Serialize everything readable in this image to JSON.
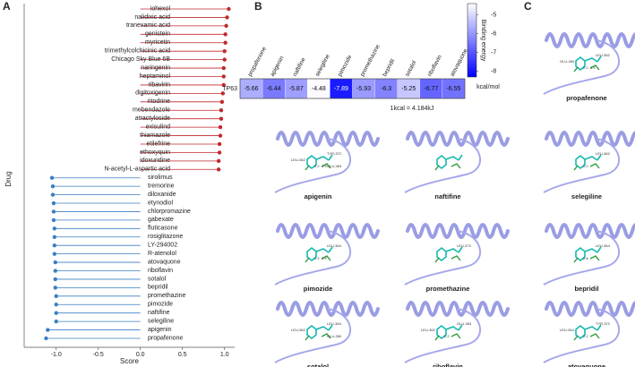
{
  "panels": [
    "A",
    "B",
    "C"
  ],
  "chart_data": [
    {
      "type": "lollipop",
      "x_label": "Score",
      "y_label": "Drug",
      "categories": [
        "iohexol",
        "nalidixic acid",
        "tranexamic acid",
        "genistein",
        "myricetin",
        "trimethylcolchicinic acid",
        "Chicago Sky Blue 6B",
        "naringenin",
        "heptaminol",
        "ribavirin",
        "digitoxigenin",
        "ritodrine",
        "mebendazole",
        "atractyloside",
        "exisulind",
        "thiamazole",
        "etilefrine",
        "ethoxyquin",
        "idoxuridine",
        "N-acetyl-L-aspartic acid",
        "sirolimus",
        "tremorine",
        "diloxanide",
        "etynodiol",
        "chlorpromazine",
        "gabexate",
        "fluticasone",
        "rosiglitazone",
        "LY-294002",
        "R-atenolol",
        "atovaquone",
        "riboflavin",
        "sotalol",
        "bepridil",
        "promethazine",
        "pimozide",
        "naftifine",
        "selegiline",
        "apigenin",
        "propafenone"
      ],
      "values": [
        1.05,
        1.03,
        1.02,
        1.01,
        1.01,
        1.0,
        1.0,
        0.99,
        0.99,
        0.99,
        0.98,
        0.97,
        0.96,
        0.96,
        0.95,
        0.95,
        0.94,
        0.94,
        0.93,
        0.93,
        -1.05,
        -1.04,
        -1.04,
        -1.03,
        -1.03,
        -1.03,
        -1.02,
        -1.02,
        -1.02,
        -1.02,
        -1.01,
        -1.01,
        -1.01,
        -1.01,
        -1.0,
        -1.0,
        -1.0,
        -1.0,
        -1.1,
        -1.12
      ],
      "positive_color": "#c0282d",
      "negative_color": "#3a7fc4",
      "xlim": [
        -1.38,
        1.12
      ],
      "xticks": [
        {
          "value": -1.0,
          "label": "-1.0"
        },
        {
          "value": -0.5,
          "label": "-0.5"
        },
        {
          "value": 0,
          "label": "0.0"
        },
        {
          "value": 0.5,
          "label": "0.5"
        },
        {
          "value": 1.0,
          "label": "1.0"
        }
      ]
    },
    {
      "type": "heatmap",
      "rows": [
        "TP63"
      ],
      "categories": [
        "propafenone",
        "apigenin",
        "naftifine",
        "selegiline",
        "pimozide",
        "promethazine",
        "bepridil",
        "sotalol",
        "riboflavin",
        "atovaquone"
      ],
      "values": [
        -5.66,
        -6.44,
        -5.87,
        -4.48,
        -7.89,
        -5.93,
        -6.3,
        -5.25,
        -6.77,
        -6.55
      ],
      "colorbar_label": "Binding energy",
      "unit": "kcal/mol",
      "note": "1kcal = 4.184kJ",
      "clim": [
        -4.4,
        -8.3
      ],
      "cticks": [
        -5,
        -6,
        -7,
        -8
      ],
      "low_color": "#ffffff",
      "high_color": "#0000ff"
    }
  ],
  "structures": [
    {
      "name": "propafenone",
      "residues": [
        "LEU-362",
        "GLU-360"
      ],
      "distances": [
        "2.2",
        "1.9"
      ]
    },
    {
      "name": "apigenin",
      "residues": [
        "TYR-372",
        "LEU-362",
        "GLU-363"
      ],
      "distances": [
        "2.2",
        "1.9"
      ]
    },
    {
      "name": "naftifine",
      "residues": [],
      "distances": []
    },
    {
      "name": "selegiline",
      "residues": [
        "LEU-362"
      ],
      "distances": [
        "2.2"
      ]
    },
    {
      "name": "pimozide",
      "residues": [
        "LEU-364"
      ],
      "distances": [
        "2.2",
        "1.9"
      ]
    },
    {
      "name": "promethazine",
      "residues": [
        "LEU-373"
      ],
      "distances": []
    },
    {
      "name": "bepridil",
      "residues": [
        "LEU-364"
      ],
      "distances": [
        "2.8"
      ]
    },
    {
      "name": "sotalol",
      "residues": [
        "LEU-364",
        "LEU-362",
        "GLU-360"
      ],
      "distances": []
    },
    {
      "name": "riboflavin",
      "residues": [
        "GLU-363",
        "LEU-362"
      ],
      "distances": [
        "2.2"
      ]
    },
    {
      "name": "atovaquone",
      "residues": [
        "TYR-372",
        "LEU-364"
      ],
      "distances": [
        "2.2"
      ]
    }
  ]
}
